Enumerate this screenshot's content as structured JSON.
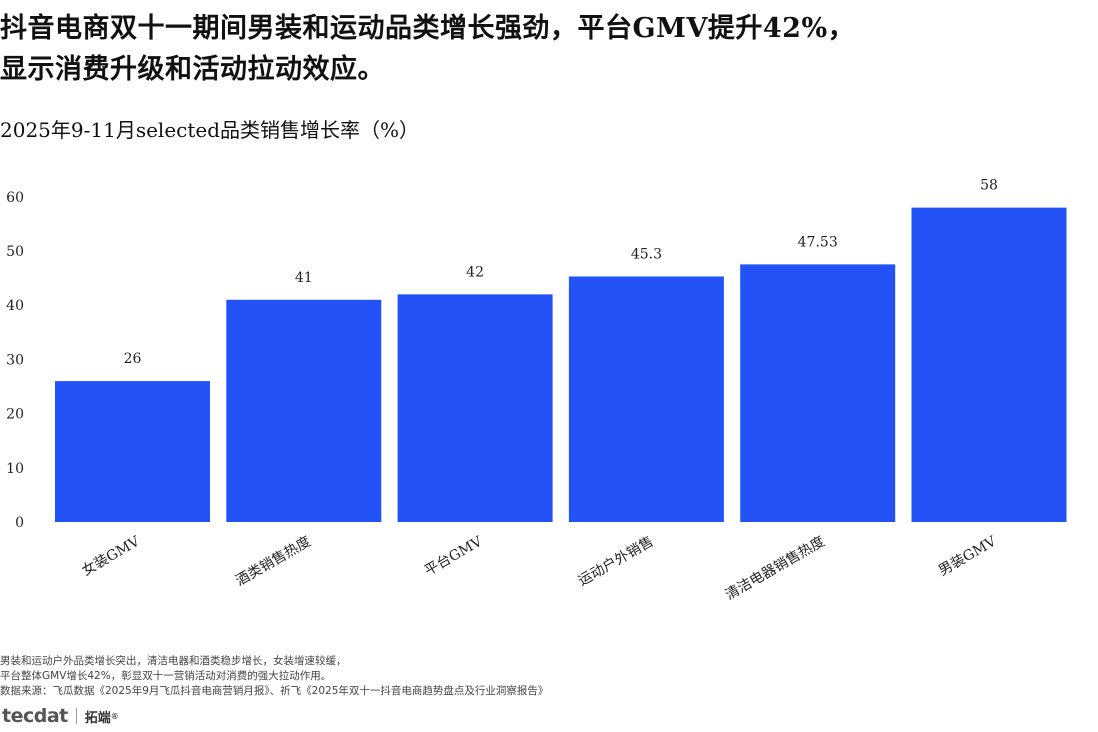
{
  "headline": {
    "line1": "抖音电商双十一期间男装和运动品类增长强劲，平台GMV提升42%，",
    "line2": "显示消费升级和活动拉动效应。"
  },
  "chart_data": {
    "type": "bar",
    "title": "2025年9-11月selected品类销售增长率（%）",
    "categories": [
      "女装GMV",
      "酒类销售热度",
      "平台GMV",
      "运动户外销售",
      "清洁电器销售热度",
      "男装GMV"
    ],
    "values": [
      26,
      41,
      42,
      45.3,
      47.53,
      58
    ],
    "value_labels": [
      "26",
      "41",
      "42",
      "45.3",
      "47.53",
      "58"
    ],
    "y_ticks": [
      "0",
      "10",
      "20",
      "30",
      "40",
      "50",
      "60"
    ],
    "ylim": [
      0,
      63
    ],
    "bar_color": "#2352f7",
    "grid": false,
    "legend": "none"
  },
  "footnote": {
    "line1": "男装和运动户外品类增长突出，清洁电器和酒类稳步增长，女装增速较缓，",
    "line2": "平台整体GMV增长42%，彰显双十一营销活动对消费的强大拉动作用。",
    "line3": "数据来源：飞瓜数据《2025年9月飞瓜抖音电商营销月报》、祈飞《2025年双十一抖音电商趋势盘点及行业洞察报告》"
  },
  "logo": {
    "brand": "tecdat",
    "cn": "拓端",
    "reg": "®"
  }
}
